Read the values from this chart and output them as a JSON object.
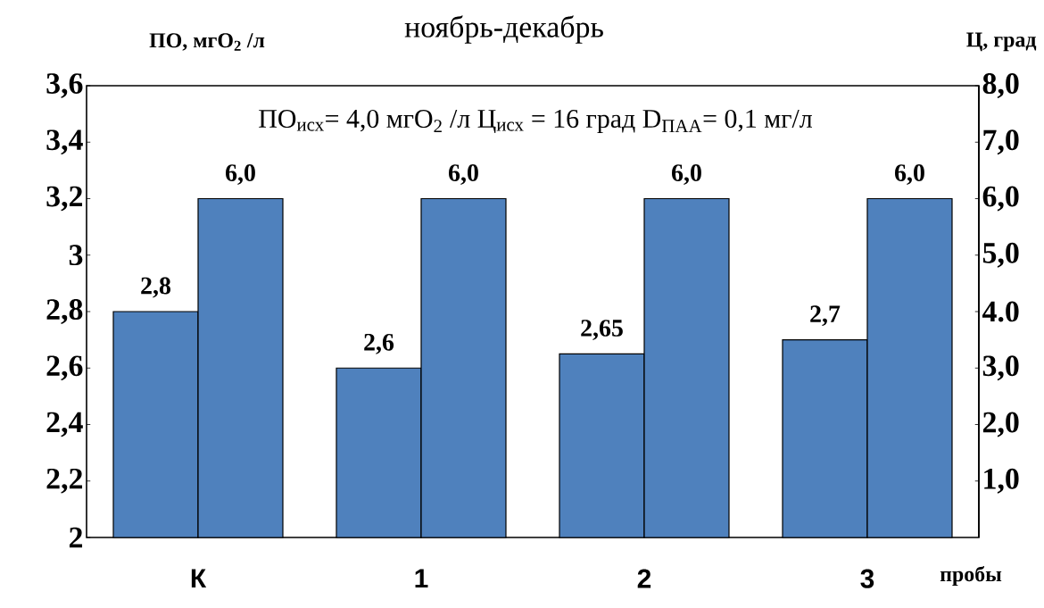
{
  "chart_data": {
    "type": "bar",
    "title": "ноябрь-декабрь",
    "ylabel": "ПО, мгО$_{2}$ /л",
    "y2label": "Ц, град",
    "xlabel": "пробы",
    "annotations": [
      "ПО$_{исх}$= 4,0 мгО$_{2}$ /л  Ц$_{исх}$ = 16 град  D$_{ПАА}$= 0,1 мг/л"
    ],
    "categories": [
      "К",
      "1",
      "2",
      "3"
    ],
    "series": [
      {
        "color": "#4f81bd",
        "values": [
          2.8,
          2.6,
          2.65,
          2.7
        ],
        "value_labels": [
          "2,8",
          "2,6",
          "2,65",
          "2,7"
        ]
      },
      {
        "color": "#4f81bd",
        "axis": "y2",
        "values": [
          6.0,
          6.0,
          6.0,
          6.0
        ],
        "value_labels": [
          "6,0",
          "6,0",
          "6,0",
          "6,0"
        ]
      }
    ],
    "ylim": [
      2,
      3.6
    ],
    "yticks": [
      2,
      {
        "value": 2.2,
        "label": "2,2"
      },
      {
        "value": 2.4,
        "label": "2,4"
      },
      {
        "value": 2.6,
        "label": "2,6"
      },
      {
        "value": 2.8,
        "label": "2,8"
      },
      3,
      {
        "value": 3.2,
        "label": "3,2"
      },
      {
        "value": 3.4,
        "label": "3,4"
      },
      {
        "value": 3.6,
        "label": "3,6"
      }
    ],
    "y2lim": [
      0,
      8
    ],
    "y2ticks": [
      {
        "value": 1,
        "label": "1,0"
      },
      {
        "value": 2,
        "label": "2,0"
      },
      {
        "value": 3,
        "label": "3,0"
      },
      {
        "value": 4,
        "label": "4.0"
      },
      {
        "value": 5,
        "label": "5,0"
      },
      {
        "value": 6,
        "label": "6,0"
      },
      {
        "value": 7,
        "label": "7,0"
      },
      {
        "value": 8,
        "label": "8,0"
      }
    ]
  }
}
